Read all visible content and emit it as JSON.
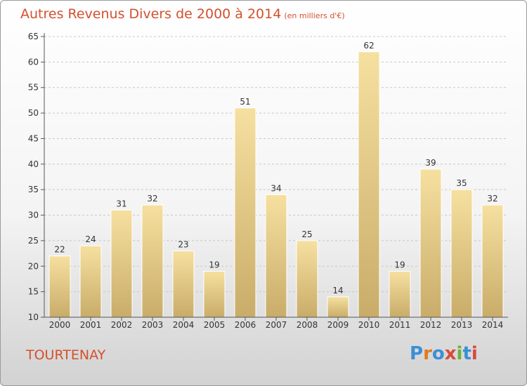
{
  "title": "Autres Revenus Divers de 2000 à 2014",
  "unit": "(en milliers d'€)",
  "town": "TOURTENAY",
  "logo": "Proxiti",
  "colors": {
    "title": "#d4502d",
    "bar_light": "#f6e0a0",
    "bar_dark": "#c9ac69",
    "axis": "#555555",
    "grid": "#c8c8c8",
    "logo": [
      "#3a8fd6",
      "#e07a22",
      "#3a8fd6",
      "#d94a3a",
      "#6bb33a",
      "#3a8fd6",
      "#d94a3a"
    ]
  },
  "chart_data": {
    "type": "bar",
    "categories": [
      "2000",
      "2001",
      "2002",
      "2003",
      "2004",
      "2005",
      "2006",
      "2007",
      "2008",
      "2009",
      "2010",
      "2011",
      "2012",
      "2013",
      "2014"
    ],
    "values": [
      22,
      24,
      31,
      32,
      23,
      19,
      51,
      34,
      25,
      14,
      62,
      19,
      39,
      35,
      32
    ],
    "title": "Autres Revenus Divers de 2000 à 2014",
    "xlabel": "",
    "ylabel": "",
    "ylim": [
      10,
      65
    ],
    "yticks": [
      10,
      15,
      20,
      25,
      30,
      35,
      40,
      45,
      50,
      55,
      60,
      65
    ],
    "grid": true,
    "data_labels": true
  }
}
